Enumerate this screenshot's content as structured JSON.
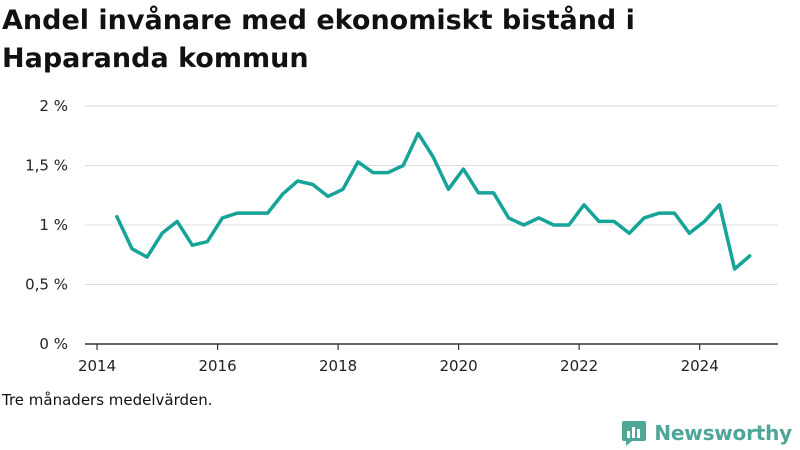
{
  "title": "Andel invånare med ekonomiskt bistånd i Haparanda kommun",
  "note": "Tre månaders medelvärden.",
  "brand": {
    "name": "Newsworthy",
    "icon": "newsworthy-logo-icon"
  },
  "colors": {
    "line": "#16a398",
    "grid": "#dddddd",
    "axis": "#333333",
    "brand": "#4fa597"
  },
  "chart_data": {
    "type": "line",
    "title": "Andel invånare med ekonomiskt bistånd i Haparanda kommun",
    "xlabel": "",
    "ylabel": "",
    "xlim": [
      2013.8,
      2025.3
    ],
    "ylim": [
      0,
      2
    ],
    "x_ticks": [
      2014,
      2016,
      2018,
      2020,
      2022,
      2024
    ],
    "x_tick_labels": [
      "2014",
      "2016",
      "2018",
      "2020",
      "2022",
      "2024"
    ],
    "y_ticks": [
      0,
      0.5,
      1,
      1.5,
      2
    ],
    "y_tick_labels": [
      "0 %",
      "0,5 %",
      "1 %",
      "1,5 %",
      "2 %"
    ],
    "grid": true,
    "series": [
      {
        "x": [
          2014.33,
          2014.58,
          2014.83,
          2015.08,
          2015.33,
          2015.58,
          2015.83,
          2016.08,
          2016.33,
          2016.58,
          2016.83,
          2017.08,
          2017.33,
          2017.58,
          2017.83,
          2018.08,
          2018.33,
          2018.58,
          2018.83,
          2019.08,
          2019.33,
          2019.58,
          2019.83,
          2020.08,
          2020.33,
          2020.58,
          2020.83,
          2021.08,
          2021.33,
          2021.58,
          2021.83,
          2022.08,
          2022.33,
          2022.58,
          2022.83,
          2023.08,
          2023.33,
          2023.58,
          2023.83,
          2024.08,
          2024.33,
          2024.58,
          2024.83
        ],
        "y": [
          1.07,
          0.8,
          0.73,
          0.93,
          1.03,
          0.83,
          0.86,
          1.06,
          1.1,
          1.1,
          1.1,
          1.26,
          1.37,
          1.34,
          1.24,
          1.3,
          1.53,
          1.44,
          1.44,
          1.5,
          1.77,
          1.57,
          1.3,
          1.47,
          1.27,
          1.27,
          1.06,
          1.0,
          1.06,
          1.0,
          1.0,
          1.17,
          1.03,
          1.03,
          0.93,
          1.06,
          1.1,
          1.1,
          0.93,
          1.03,
          1.17,
          0.63,
          0.74
        ]
      }
    ]
  }
}
